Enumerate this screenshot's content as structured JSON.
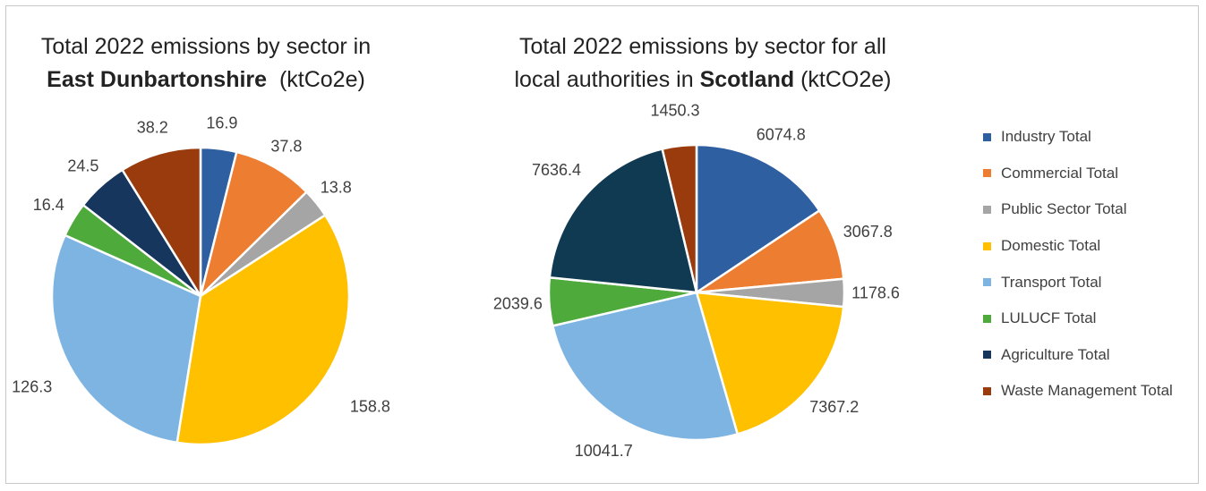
{
  "charts_title": {
    "left": {
      "line1": "Total 2022 emissions by sector in",
      "bold": "East Dunbartonshire",
      "unit": "(ktCo2e)"
    },
    "right": {
      "line1": "Total 2022 emissions by sector for all",
      "line2_prefix": "local authorities in",
      "bold": "Scotland",
      "unit": "(ktCO2e)"
    }
  },
  "legend": {
    "items": [
      {
        "label": "Industry Total",
        "color": "#2E5FA1"
      },
      {
        "label": "Commercial Total",
        "color": "#ED7D31"
      },
      {
        "label": "Public Sector Total",
        "color": "#A5A5A5"
      },
      {
        "label": "Domestic  Total",
        "color": "#FFC000"
      },
      {
        "label": "Transport Total",
        "color": "#7EB4E2"
      },
      {
        "label": "LULUCF Total",
        "color": "#4EAA3A"
      },
      {
        "label": "Agriculture Total",
        "color": "#17365D"
      },
      {
        "label": "Waste Management Total",
        "color": "#9A3B0E"
      }
    ]
  },
  "chart_data": [
    {
      "type": "pie",
      "title": "Total 2022 emissions by sector in East Dunbartonshire (ktCo2e)",
      "categories": [
        "Industry Total",
        "Commercial Total",
        "Public Sector Total",
        "Domestic  Total",
        "Transport Total",
        "LULUCF Total",
        "Agriculture Total",
        "Waste Management Total"
      ],
      "values": [
        16.9,
        37.8,
        13.8,
        158.8,
        126.3,
        16.4,
        24.5,
        38.2
      ],
      "labels": [
        "16.9",
        "37.8",
        "13.8",
        "158.8",
        "126.3",
        "16.4",
        "24.5",
        "38.2"
      ],
      "colors": [
        "#2E5FA1",
        "#ED7D31",
        "#A5A5A5",
        "#FFC000",
        "#7EB4E2",
        "#4EAA3A",
        "#17365D",
        "#9A3B0E"
      ],
      "start_angle": "12 o'clock",
      "direction": "clockwise"
    },
    {
      "type": "pie",
      "title": "Total 2022 emissions by sector for all local authorities in Scotland (ktCO2e)",
      "categories": [
        "Industry Total",
        "Commercial Total",
        "Public Sector Total",
        "Domestic  Total",
        "Transport Total",
        "LULUCF Total",
        "Agriculture Total",
        "Waste Management Total"
      ],
      "values": [
        6074.8,
        3067.8,
        1178.6,
        7367.2,
        10041.7,
        2039.6,
        7636.4,
        1450.3
      ],
      "labels": [
        "6074.8",
        "3067.8",
        "1178.6",
        "7367.2",
        "10041.7",
        "2039.6",
        "7636.4",
        "1450.3"
      ],
      "colors": [
        "#2E5FA1",
        "#ED7D31",
        "#A5A5A5",
        "#FFC000",
        "#7EB4E2",
        "#4EAA3A",
        "#0F3A52",
        "#9A3B0E"
      ],
      "start_angle": "12 o'clock",
      "direction": "clockwise"
    }
  ]
}
